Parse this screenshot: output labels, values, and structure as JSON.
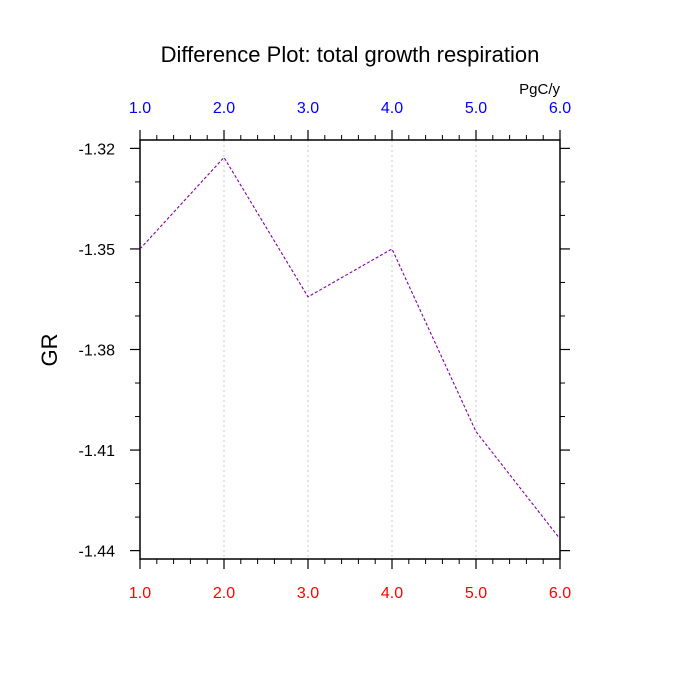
{
  "chart_data": {
    "type": "line",
    "title": "Difference Plot: total growth respiration",
    "units_label": "PgC/y",
    "xlabel": "",
    "ylabel": "GR",
    "xlim": [
      1.0,
      6.0
    ],
    "ylim": [
      -1.4425,
      -1.3175
    ],
    "x": [
      1.0,
      2.0,
      3.0,
      4.0,
      5.0,
      6.0
    ],
    "series": [
      {
        "values": [
          -1.35,
          -1.3227,
          -1.3643,
          -1.35,
          -1.4045,
          -1.4365
        ],
        "color": "#8000a0",
        "line_style": "dashed"
      }
    ],
    "bottom_ticks": [
      "1.0",
      "2.0",
      "3.0",
      "4.0",
      "5.0",
      "6.0"
    ],
    "top_ticks": [
      "1.0",
      "2.0",
      "3.0",
      "4.0",
      "5.0",
      "6.0"
    ],
    "y_ticks": [
      {
        "value": -1.32,
        "label": "-1.32"
      },
      {
        "value": -1.35,
        "label": "-1.35"
      },
      {
        "value": -1.38,
        "label": "-1.38"
      },
      {
        "value": -1.41,
        "label": "-1.41"
      },
      {
        "value": -1.44,
        "label": "-1.44"
      }
    ],
    "colors": {
      "bottom_axis_labels": "#ff0000",
      "top_axis_labels": "#0000ff",
      "grid": "#c8c8c8"
    },
    "grid": "vertical-dotted"
  }
}
